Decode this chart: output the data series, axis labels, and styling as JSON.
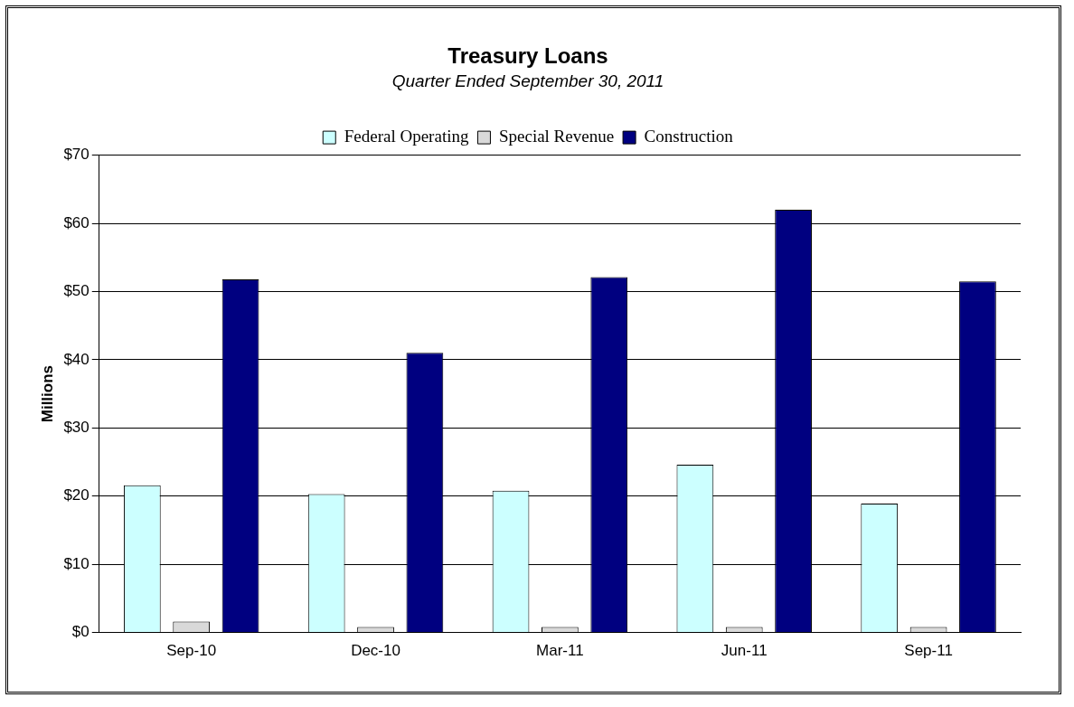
{
  "chart_data": {
    "type": "bar",
    "title": "Treasury Loans",
    "subtitle": "Quarter Ended September 30, 2011",
    "ylabel": "Millions",
    "categories": [
      "Sep-10",
      "Dec-10",
      "Mar-11",
      "Jun-11",
      "Sep-11"
    ],
    "series": [
      {
        "name": "Federal Operating",
        "color": "#ccffff",
        "values": [
          21.6,
          20.3,
          20.8,
          24.6,
          18.9
        ]
      },
      {
        "name": "Special Revenue",
        "color": "#d9d9d9",
        "values": [
          1.6,
          0.8,
          0.8,
          0.8,
          0.8
        ]
      },
      {
        "name": "Construction",
        "color": "#000080",
        "values": [
          51.8,
          41,
          52.1,
          62,
          51.5
        ]
      }
    ],
    "ylim": [
      0,
      70
    ],
    "yticks": [
      {
        "value": 0,
        "label": "$0"
      },
      {
        "value": 10,
        "label": "$10"
      },
      {
        "value": 20,
        "label": "$20"
      },
      {
        "value": 30,
        "label": "$30"
      },
      {
        "value": 40,
        "label": "$40"
      },
      {
        "value": 50,
        "label": "$50"
      },
      {
        "value": 60,
        "label": "$60"
      },
      {
        "value": 70,
        "label": "$70"
      }
    ],
    "grid": "y",
    "legend": "top"
  }
}
